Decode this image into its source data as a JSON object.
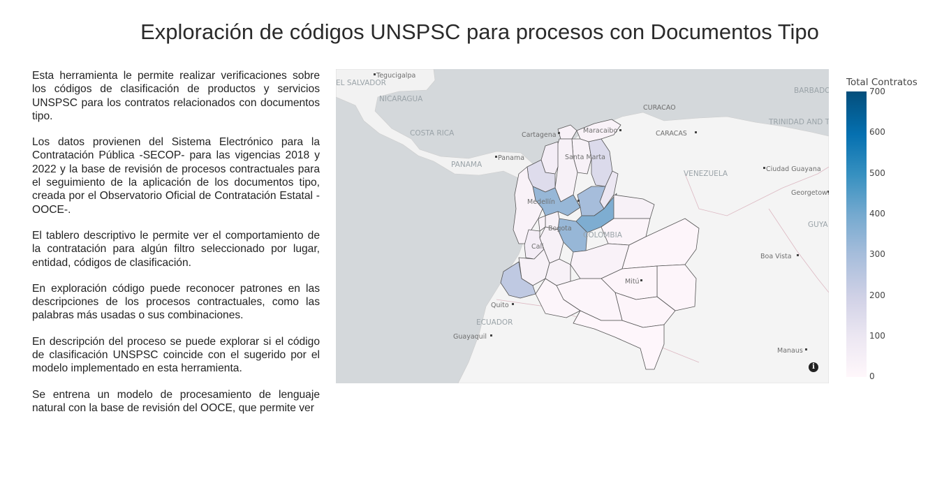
{
  "page": {
    "title": "Exploración de códigos UNSPSC para procesos con Documentos Tipo"
  },
  "intro": {
    "paragraphs": [
      "Esta herramienta le permite realizar verificaciones sobre los códigos de clasificación de productos y servicios UNSPSC para los contratos relacionados con documentos tipo.",
      "Los datos provienen del Sistema Electrónico para la Contratación Pública -SECOP- para las vigencias 2018 y 2022 y la base de revisión de procesos contractuales para el seguimiento de la aplicación de los documentos tipo, creada por el Observatorio Oficial de Contratación Estatal -OOCE-.",
      "El tablero descriptivo le permite ver el comportamiento de la contratación para algún filtro seleccionado por lugar, entidad, códigos de clasificación.",
      "En exploración código puede reconocer patrones en las descripciones de los procesos contractuales, como las palabras más usadas o sus combinaciones.",
      "En descripción del proceso se puede explorar si el código de clasificación UNSPSC coincide con el sugerido por el modelo implementado en esta herramienta.",
      "Se entrena un modelo de procesamiento de lenguaje natural con la base de revisión del OOCE, que permite ver"
    ]
  },
  "map": {
    "countries": [
      "NICARAGUA",
      "COSTA RICA",
      "PANAMA",
      "VENEZUELA",
      "COLOMBIA",
      "ECUADOR",
      "GUYA",
      "TRINIDAD AND TOBAGO",
      "BARBADO",
      "EL SALVADOR"
    ],
    "cities": [
      "Tegucigalpa",
      "CURACAO",
      "Cartagena",
      "Maracaibo",
      "CARACAS",
      "Ciudad Guayana",
      "Panama",
      "Georgetown",
      "Medellín",
      "Bogota",
      "Cali",
      "Boa Vista",
      "Mitú",
      "Quito",
      "Guayaquil",
      "Manaus",
      "Santa Marta"
    ],
    "info_icon": "info-icon"
  },
  "colorbar": {
    "title": "Total Contratos",
    "ticks": [
      "700",
      "600",
      "500",
      "400",
      "300",
      "200",
      "100",
      "0"
    ],
    "range": [
      0,
      700
    ],
    "colors": [
      "#fff7fb",
      "#ece7f2",
      "#d0d1e6",
      "#a6bddb",
      "#74a9cf",
      "#3690c0",
      "#0570b0",
      "#034e7b"
    ]
  },
  "chart_data": {
    "type": "choropleth",
    "value_label": "Total Contratos",
    "range": [
      0,
      700
    ],
    "regions": [
      {
        "id": "choco",
        "value": 30
      },
      {
        "id": "antioquia",
        "value": 330
      },
      {
        "id": "cordoba",
        "value": 150
      },
      {
        "id": "sucre",
        "value": 60
      },
      {
        "id": "bolivar",
        "value": 40
      },
      {
        "id": "atlantico",
        "value": 30
      },
      {
        "id": "magdalena",
        "value": 40
      },
      {
        "id": "la-guajira",
        "value": 30
      },
      {
        "id": "cesar",
        "value": 160
      },
      {
        "id": "norte-de-santander",
        "value": 100
      },
      {
        "id": "santander",
        "value": 300
      },
      {
        "id": "boyaca",
        "value": 380
      },
      {
        "id": "cundinamarca",
        "value": 330
      },
      {
        "id": "arauca",
        "value": 40
      },
      {
        "id": "casanare",
        "value": 20
      },
      {
        "id": "caldas",
        "value": 40
      },
      {
        "id": "risaralda",
        "value": 30
      },
      {
        "id": "tolima",
        "value": 40
      },
      {
        "id": "valle-del-cauca",
        "value": 60
      },
      {
        "id": "cauca",
        "value": 40
      },
      {
        "id": "narino",
        "value": 240
      },
      {
        "id": "huila",
        "value": 40
      },
      {
        "id": "meta",
        "value": 30
      },
      {
        "id": "vichada",
        "value": 10
      },
      {
        "id": "guainia",
        "value": 10
      },
      {
        "id": "guaviare",
        "value": 10
      },
      {
        "id": "vaupes",
        "value": 10
      },
      {
        "id": "caqueta",
        "value": 15
      },
      {
        "id": "putumayo",
        "value": 15
      },
      {
        "id": "amazonas",
        "value": 5
      }
    ]
  }
}
